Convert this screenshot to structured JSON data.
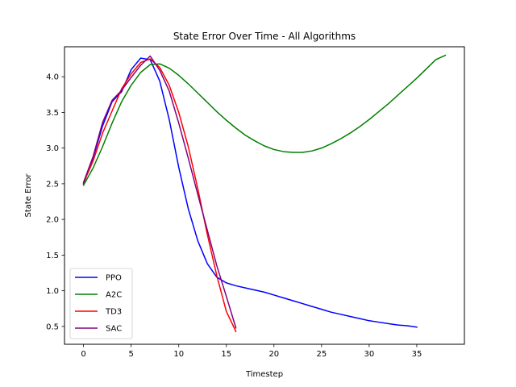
{
  "chart_data": {
    "type": "line",
    "title": "State Error Over Time - All Algorithms",
    "xlabel": "Timestep",
    "ylabel": "State Error",
    "xlim": [
      -2,
      40
    ],
    "ylim": [
      0.25,
      4.42
    ],
    "xticks": [
      0,
      5,
      10,
      15,
      20,
      25,
      30,
      35
    ],
    "yticks": [
      0.5,
      1.0,
      1.5,
      2.0,
      2.5,
      3.0,
      3.5,
      4.0
    ],
    "xtick_labels": [
      "0",
      "5",
      "10",
      "15",
      "20",
      "25",
      "30",
      "35"
    ],
    "ytick_labels": [
      "0.5",
      "1.0",
      "1.5",
      "2.0",
      "2.5",
      "3.0",
      "3.5",
      "4.0"
    ],
    "grid": false,
    "legend_position": "lower-left",
    "series": [
      {
        "name": "PPO",
        "color": "#0000ff",
        "x": [
          0,
          1,
          2,
          3,
          4,
          5,
          6,
          7,
          8,
          9,
          10,
          11,
          12,
          13,
          14,
          15,
          16,
          17,
          18,
          19,
          20,
          21,
          22,
          23,
          24,
          25,
          26,
          27,
          28,
          29,
          30,
          31,
          32,
          33,
          34,
          35
        ],
        "values": [
          2.5,
          2.86,
          3.31,
          3.65,
          3.79,
          4.1,
          4.26,
          4.24,
          3.94,
          3.4,
          2.73,
          2.15,
          1.7,
          1.38,
          1.19,
          1.11,
          1.07,
          1.04,
          1.01,
          0.98,
          0.94,
          0.9,
          0.86,
          0.82,
          0.78,
          0.74,
          0.7,
          0.67,
          0.64,
          0.61,
          0.58,
          0.56,
          0.54,
          0.52,
          0.51,
          0.49
        ]
      },
      {
        "name": "A2C",
        "color": "#008000",
        "x": [
          0,
          1,
          2,
          3,
          4,
          5,
          6,
          7,
          8,
          9,
          10,
          11,
          12,
          13,
          14,
          15,
          16,
          17,
          18,
          19,
          20,
          21,
          22,
          23,
          24,
          25,
          26,
          27,
          28,
          29,
          30,
          31,
          32,
          33,
          34,
          35,
          36,
          37,
          38
        ],
        "values": [
          2.48,
          2.72,
          3.02,
          3.35,
          3.65,
          3.88,
          4.06,
          4.17,
          4.18,
          4.12,
          4.02,
          3.9,
          3.77,
          3.64,
          3.51,
          3.39,
          3.28,
          3.18,
          3.1,
          3.03,
          2.98,
          2.95,
          2.94,
          2.94,
          2.96,
          3.0,
          3.06,
          3.13,
          3.21,
          3.3,
          3.4,
          3.51,
          3.62,
          3.74,
          3.86,
          3.98,
          4.11,
          4.24,
          4.3
        ]
      },
      {
        "name": "TD3",
        "color": "#ff0000",
        "x": [
          0,
          1,
          2,
          3,
          4,
          5,
          6,
          7,
          8,
          9,
          10,
          11,
          12,
          13,
          14,
          15,
          16
        ],
        "values": [
          2.51,
          2.82,
          3.21,
          3.52,
          3.83,
          4.04,
          4.2,
          4.25,
          4.13,
          3.88,
          3.5,
          3.02,
          2.43,
          1.79,
          1.21,
          0.71,
          0.43
        ]
      },
      {
        "name": "SAC",
        "color": "#800080",
        "x": [
          0,
          1,
          2,
          3,
          4,
          5,
          6,
          7,
          8,
          9,
          10,
          11,
          12,
          13,
          14,
          15,
          16
        ],
        "values": [
          2.52,
          2.88,
          3.36,
          3.67,
          3.81,
          3.99,
          4.16,
          4.29,
          4.09,
          3.8,
          3.35,
          2.86,
          2.35,
          1.85,
          1.35,
          0.92,
          0.48
        ]
      }
    ]
  }
}
